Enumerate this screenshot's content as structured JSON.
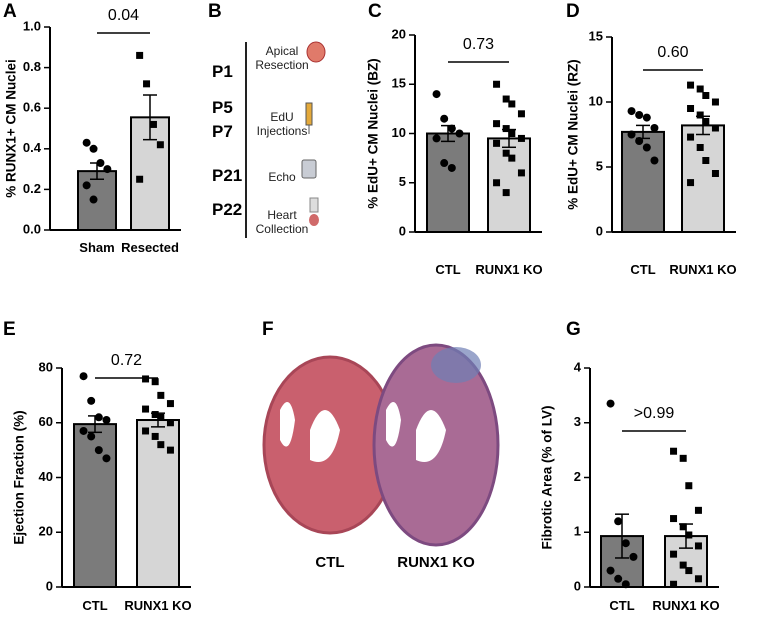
{
  "chart_data": [
    {
      "type": "bar",
      "label": "A",
      "ylabel": "% RUNX1+ CM  Nuclei",
      "annotation": "0.04",
      "categories": [
        "Sham",
        "Resected"
      ],
      "values": [
        0.29,
        0.555
      ],
      "errors": [
        0.04,
        0.11
      ],
      "points": [
        [
          0.43,
          0.4,
          0.33,
          0.3,
          0.22,
          0.15
        ],
        [
          0.86,
          0.72,
          0.52,
          0.42,
          0.25
        ]
      ],
      "colors": [
        "#7b7b7b",
        "#d6d6d6"
      ],
      "ylim": [
        0,
        1
      ],
      "yticks": [
        {
          "value": 0,
          "label": "0.0"
        },
        0.2,
        0.4,
        0.6,
        0.8,
        {
          "value": 1,
          "label": "1.0"
        }
      ]
    },
    {
      "type": "bar",
      "label": "C",
      "ylabel": "% EdU+ CM Nuclei (BZ)",
      "annotation": "0.73",
      "categories": [
        "CTL",
        "RUNX1 KO"
      ],
      "values": [
        10.0,
        9.5
      ],
      "errors": [
        0.8,
        0.9
      ],
      "points": [
        [
          14,
          11.5,
          10.5,
          10,
          9.5,
          7,
          6.5
        ],
        [
          15,
          13.5,
          13,
          12,
          11,
          10.5,
          10,
          9.5,
          9,
          8,
          7.5,
          6,
          5,
          4
        ]
      ],
      "colors": [
        "#7b7b7b",
        "#d6d6d6"
      ],
      "ylim": [
        0,
        20
      ],
      "yticks": [
        0,
        5,
        10,
        15,
        20
      ]
    },
    {
      "type": "bar",
      "label": "D",
      "ylabel": "% EdU+  CM  Nuclei (RZ)",
      "annotation": "0.60",
      "categories": [
        "CTL",
        "RUNX1 KO"
      ],
      "values": [
        7.7,
        8.2
      ],
      "errors": [
        0.5,
        0.7
      ],
      "points": [
        [
          9.3,
          9,
          8.8,
          8,
          7.5,
          7,
          6.5,
          5.5
        ],
        [
          11.3,
          11,
          10.5,
          10,
          9.5,
          9,
          8.5,
          8,
          7.3,
          6.5,
          5.5,
          4.5,
          3.8
        ]
      ],
      "colors": [
        "#7b7b7b",
        "#d6d6d6"
      ],
      "ylim": [
        0,
        15
      ],
      "yticks": [
        0,
        5,
        10,
        15
      ]
    },
    {
      "type": "bar",
      "label": "E",
      "ylabel": "Ejection  Fraction (%)",
      "annotation": "0.72",
      "categories": [
        "CTL",
        "RUNX1 KO"
      ],
      "values": [
        59.5,
        61
      ],
      "errors": [
        3,
        2.5
      ],
      "points": [
        [
          77,
          68,
          62,
          61,
          57,
          55,
          50,
          47
        ],
        [
          76,
          75,
          70,
          67,
          65,
          63,
          62,
          60,
          57,
          55,
          52,
          50
        ]
      ],
      "colors": [
        "#7b7b7b",
        "#d6d6d6"
      ],
      "ylim": [
        0,
        80
      ],
      "yticks": [
        0,
        20,
        40,
        60,
        80
      ]
    },
    {
      "type": "bar",
      "label": "G",
      "ylabel": "Fibrotic  Area (% of LV)",
      "annotation": ">0.99",
      "categories": [
        "CTL",
        "RUNX1 KO"
      ],
      "values": [
        0.93,
        0.93
      ],
      "errors": [
        0.4,
        0.22
      ],
      "points": [
        [
          3.35,
          1.2,
          0.8,
          0.55,
          0.3,
          0.15,
          0.05
        ],
        [
          2.48,
          2.35,
          1.85,
          1.4,
          1.25,
          1.1,
          0.95,
          0.75,
          0.6,
          0.4,
          0.3,
          0.15,
          0.05
        ]
      ],
      "colors": [
        "#7b7b7b",
        "#d6d6d6"
      ],
      "ylim": [
        0,
        4
      ],
      "yticks": [
        0,
        1,
        2,
        3,
        4
      ]
    }
  ],
  "timeline": {
    "label": "B",
    "steps": [
      {
        "days": [
          "P1"
        ],
        "event": "Apical Resection"
      },
      {
        "days": [
          "P5",
          "P7"
        ],
        "event": "EdU Injections"
      },
      {
        "days": [
          "P21"
        ],
        "event": "Echo"
      },
      {
        "days": [
          "P22"
        ],
        "event": "Heart Collection"
      }
    ]
  },
  "histology": {
    "label": "F",
    "groups": [
      "CTL",
      "RUNX1 KO"
    ]
  }
}
